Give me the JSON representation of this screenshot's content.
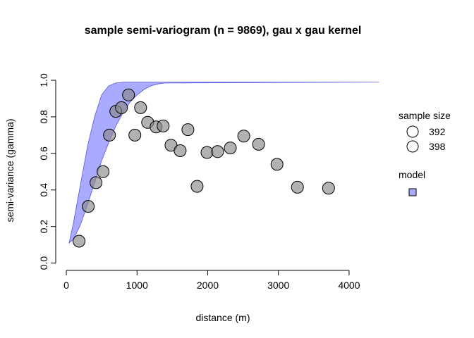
{
  "chart_data": {
    "type": "scatter",
    "title": "sample semi-variogram (n = 9869), gau x gau kernel",
    "xlabel": "distance (m)",
    "ylabel": "semi-variance (gamma)",
    "xlim": [
      -150,
      4450
    ],
    "ylim": [
      -0.04,
      1.0
    ],
    "xticks": [
      0,
      1000,
      2000,
      3000,
      4000
    ],
    "xtick_labels": [
      "0",
      "1000",
      "2000",
      "3000",
      "4000"
    ],
    "yticks": [
      0.0,
      0.2,
      0.4,
      0.6,
      0.8,
      1.0
    ],
    "ytick_labels": [
      "0.0",
      "0.2",
      "0.4",
      "0.6",
      "0.8",
      "1.0"
    ],
    "grid": false,
    "series": [
      {
        "points": [
          [
            180,
            0.12
          ],
          [
            310,
            0.31
          ],
          [
            420,
            0.44
          ],
          [
            520,
            0.5
          ],
          [
            610,
            0.7
          ],
          [
            700,
            0.83
          ],
          [
            780,
            0.85
          ],
          [
            880,
            0.92
          ],
          [
            970,
            0.7
          ],
          [
            1050,
            0.85
          ],
          [
            1150,
            0.77
          ],
          [
            1270,
            0.745
          ],
          [
            1370,
            0.75
          ],
          [
            1480,
            0.645
          ],
          [
            1610,
            0.615
          ],
          [
            1720,
            0.73
          ],
          [
            1850,
            0.42
          ],
          [
            1990,
            0.605
          ],
          [
            2140,
            0.61
          ],
          [
            2320,
            0.63
          ],
          [
            2510,
            0.695
          ],
          [
            2720,
            0.65
          ],
          [
            2980,
            0.54
          ],
          [
            3270,
            0.415
          ],
          [
            3710,
            0.41
          ]
        ],
        "color": "#888888"
      }
    ],
    "model_band": {
      "x": [
        40,
        100,
        200,
        300,
        400,
        500,
        600,
        700,
        800,
        900,
        1000,
        1100,
        1200,
        1300,
        1400,
        4420
      ],
      "lower": [
        0.11,
        0.13,
        0.21,
        0.32,
        0.44,
        0.56,
        0.66,
        0.75,
        0.82,
        0.88,
        0.92,
        0.95,
        0.97,
        0.98,
        0.985,
        0.99
      ],
      "upper": [
        0.11,
        0.22,
        0.43,
        0.64,
        0.8,
        0.92,
        0.97,
        0.985,
        0.99,
        0.99,
        0.99,
        0.99,
        0.99,
        0.99,
        0.99,
        0.99
      ],
      "fill": "#aaaaff",
      "stroke": "#5555dd"
    },
    "legend": {
      "placement": "right",
      "size_title": "sample size",
      "size_labels": [
        "392",
        "398"
      ],
      "model_title": "model"
    }
  }
}
